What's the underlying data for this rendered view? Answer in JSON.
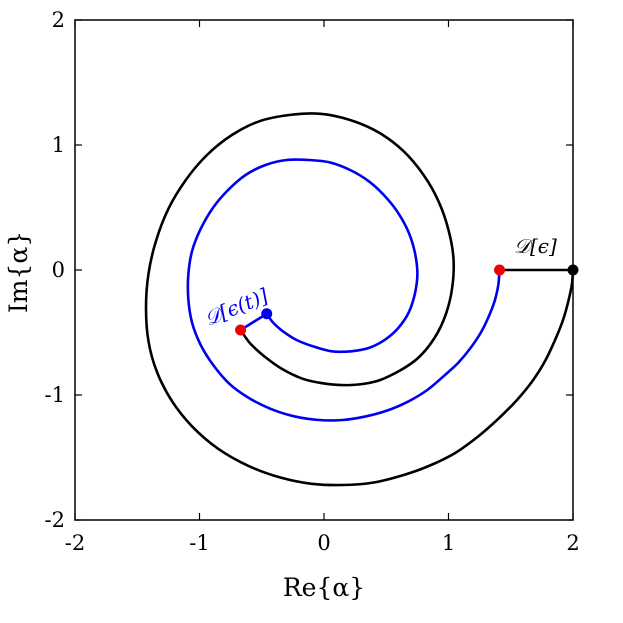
{
  "chart_data": {
    "type": "line",
    "title": "",
    "xlabel": "Re{α}",
    "ylabel": "Im{α}",
    "xlim": [
      -2,
      2
    ],
    "ylim": [
      -2,
      2
    ],
    "x_ticks": [
      "-2",
      "-1",
      "0",
      "1",
      "2"
    ],
    "y_ticks": [
      "-2",
      "-1",
      "0",
      "1",
      "2"
    ],
    "grid": false,
    "series": [
      {
        "color": "#000000",
        "points": [
          [
            2.0,
            0.0
          ],
          [
            1.99,
            -0.12
          ],
          [
            1.96,
            -0.26
          ],
          [
            1.92,
            -0.4
          ],
          [
            1.86,
            -0.55
          ],
          [
            1.78,
            -0.72
          ],
          [
            1.68,
            -0.88
          ],
          [
            1.55,
            -1.04
          ],
          [
            1.4,
            -1.19
          ],
          [
            1.24,
            -1.33
          ],
          [
            1.06,
            -1.46
          ],
          [
            0.86,
            -1.56
          ],
          [
            0.64,
            -1.64
          ],
          [
            0.4,
            -1.7
          ],
          [
            0.15,
            -1.72
          ],
          [
            -0.1,
            -1.71
          ],
          [
            -0.35,
            -1.66
          ],
          [
            -0.6,
            -1.57
          ],
          [
            -0.85,
            -1.43
          ],
          [
            -1.06,
            -1.25
          ],
          [
            -1.22,
            -1.05
          ],
          [
            -1.34,
            -0.82
          ],
          [
            -1.41,
            -0.57
          ],
          [
            -1.43,
            -0.3
          ],
          [
            -1.41,
            -0.03
          ],
          [
            -1.35,
            0.23
          ],
          [
            -1.25,
            0.49
          ],
          [
            -1.11,
            0.72
          ],
          [
            -0.94,
            0.92
          ],
          [
            -0.74,
            1.08
          ],
          [
            -0.52,
            1.19
          ],
          [
            -0.28,
            1.24
          ],
          [
            -0.03,
            1.25
          ],
          [
            0.21,
            1.2
          ],
          [
            0.44,
            1.1
          ],
          [
            0.64,
            0.95
          ],
          [
            0.8,
            0.76
          ],
          [
            0.92,
            0.55
          ],
          [
            1.0,
            0.32
          ],
          [
            1.04,
            0.09
          ],
          [
            1.03,
            -0.14
          ],
          [
            0.98,
            -0.35
          ],
          [
            0.89,
            -0.54
          ],
          [
            0.76,
            -0.7
          ],
          [
            0.6,
            -0.81
          ],
          [
            0.42,
            -0.89
          ],
          [
            0.22,
            -0.92
          ],
          [
            0.02,
            -0.91
          ],
          [
            -0.17,
            -0.87
          ],
          [
            -0.34,
            -0.79
          ],
          [
            -0.48,
            -0.69
          ],
          [
            -0.59,
            -0.59
          ],
          [
            -0.67,
            -0.48
          ]
        ]
      },
      {
        "color": "#0000ee",
        "points": [
          [
            1.41,
            0.0
          ],
          [
            1.4,
            -0.12
          ],
          [
            1.37,
            -0.25
          ],
          [
            1.32,
            -0.38
          ],
          [
            1.26,
            -0.5
          ],
          [
            1.18,
            -0.62
          ],
          [
            1.08,
            -0.74
          ],
          [
            0.96,
            -0.85
          ],
          [
            0.83,
            -0.96
          ],
          [
            0.68,
            -1.05
          ],
          [
            0.52,
            -1.12
          ],
          [
            0.34,
            -1.17
          ],
          [
            0.15,
            -1.2
          ],
          [
            -0.04,
            -1.2
          ],
          [
            -0.24,
            -1.17
          ],
          [
            -0.43,
            -1.11
          ],
          [
            -0.61,
            -1.02
          ],
          [
            -0.76,
            -0.91
          ],
          [
            -0.89,
            -0.76
          ],
          [
            -0.99,
            -0.6
          ],
          [
            -1.06,
            -0.42
          ],
          [
            -1.09,
            -0.23
          ],
          [
            -1.09,
            -0.04
          ],
          [
            -1.06,
            0.15
          ],
          [
            -0.99,
            0.33
          ],
          [
            -0.89,
            0.5
          ],
          [
            -0.77,
            0.64
          ],
          [
            -0.63,
            0.76
          ],
          [
            -0.47,
            0.84
          ],
          [
            -0.3,
            0.88
          ],
          [
            -0.12,
            0.88
          ],
          [
            0.05,
            0.86
          ],
          [
            0.21,
            0.8
          ],
          [
            0.36,
            0.71
          ],
          [
            0.49,
            0.59
          ],
          [
            0.6,
            0.45
          ],
          [
            0.68,
            0.3
          ],
          [
            0.73,
            0.14
          ],
          [
            0.75,
            -0.03
          ],
          [
            0.73,
            -0.19
          ],
          [
            0.68,
            -0.34
          ],
          [
            0.6,
            -0.46
          ],
          [
            0.5,
            -0.55
          ],
          [
            0.37,
            -0.62
          ],
          [
            0.22,
            -0.65
          ],
          [
            0.06,
            -0.65
          ],
          [
            -0.09,
            -0.61
          ],
          [
            -0.22,
            -0.56
          ],
          [
            -0.33,
            -0.49
          ],
          [
            -0.41,
            -0.42
          ],
          [
            -0.46,
            -0.35
          ]
        ]
      }
    ],
    "connectors": [
      {
        "color": "#000000",
        "from": [
          1.41,
          0.0
        ],
        "to": [
          2.0,
          0.0
        ]
      },
      {
        "color": "#0000ee",
        "from": [
          -0.67,
          -0.48
        ],
        "to": [
          -0.46,
          -0.35
        ]
      }
    ],
    "markers": [
      {
        "x": 2.0,
        "y": 0.0,
        "color": "#000000"
      },
      {
        "x": 1.41,
        "y": 0.0,
        "color": "#ee0000"
      },
      {
        "x": -0.46,
        "y": -0.35,
        "color": "#0000ee"
      },
      {
        "x": -0.67,
        "y": -0.48,
        "color": "#ee0000"
      }
    ],
    "annotations": [
      {
        "text": "𝒟[ϵ]",
        "color": "#000000"
      },
      {
        "text": "𝒟[ϵ(t)]",
        "color": "#0000ee"
      }
    ]
  }
}
